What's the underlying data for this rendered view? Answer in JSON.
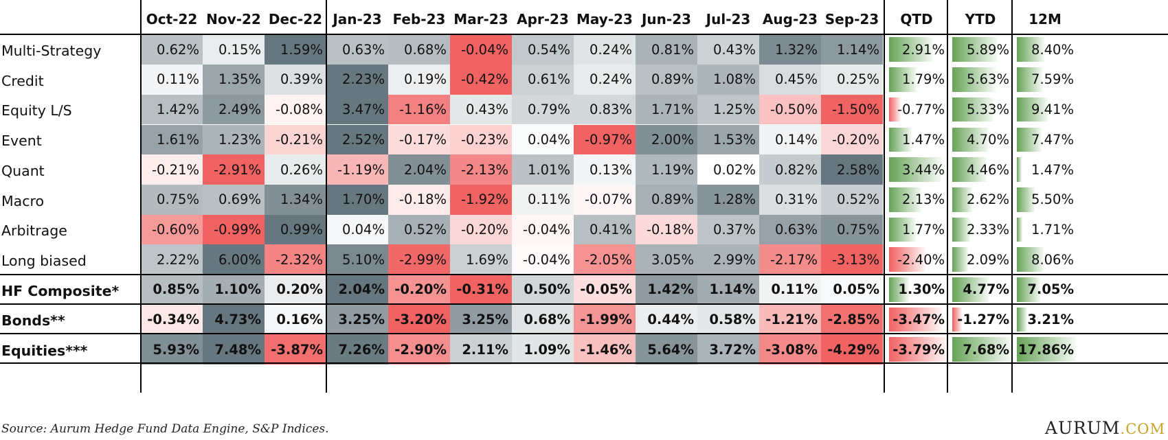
{
  "chart_data": {
    "type": "table",
    "months": [
      "Oct-22",
      "Nov-22",
      "Dec-22",
      "Jan-23",
      "Feb-23",
      "Mar-23",
      "Apr-23",
      "May-23",
      "Jun-23",
      "Jul-23",
      "Aug-23",
      "Sep-23"
    ],
    "summary_headers": [
      "QTD",
      "YTD",
      "12M"
    ],
    "rows": [
      {
        "label": "Multi-Strategy",
        "bold": false,
        "monthly": [
          "0.62%",
          "0.15%",
          "1.59%",
          "0.63%",
          "0.68%",
          "-0.04%",
          "0.54%",
          "0.24%",
          "0.81%",
          "0.43%",
          "1.32%",
          "1.14%"
        ],
        "summary": [
          "2.91%",
          "5.89%",
          "8.40%"
        ]
      },
      {
        "label": "Credit",
        "bold": false,
        "monthly": [
          "0.11%",
          "1.35%",
          "0.39%",
          "2.23%",
          "0.19%",
          "-0.42%",
          "0.61%",
          "0.24%",
          "0.89%",
          "1.08%",
          "0.45%",
          "0.25%"
        ],
        "summary": [
          "1.79%",
          "5.63%",
          "7.59%"
        ]
      },
      {
        "label": "Equity L/S",
        "bold": false,
        "monthly": [
          "1.42%",
          "2.49%",
          "-0.08%",
          "3.47%",
          "-1.16%",
          "0.43%",
          "0.79%",
          "0.83%",
          "1.71%",
          "1.25%",
          "-0.50%",
          "-1.50%"
        ],
        "summary": [
          "-0.77%",
          "5.33%",
          "9.41%"
        ]
      },
      {
        "label": "Event",
        "bold": false,
        "monthly": [
          "1.61%",
          "1.23%",
          "-0.21%",
          "2.52%",
          "-0.17%",
          "-0.23%",
          "0.04%",
          "-0.97%",
          "2.00%",
          "1.53%",
          "0.14%",
          "-0.20%"
        ],
        "summary": [
          "1.47%",
          "4.70%",
          "7.47%"
        ]
      },
      {
        "label": "Quant",
        "bold": false,
        "monthly": [
          "-0.21%",
          "-2.91%",
          "0.26%",
          "-1.19%",
          "2.04%",
          "-2.13%",
          "1.01%",
          "0.13%",
          "1.19%",
          "0.02%",
          "0.82%",
          "2.58%"
        ],
        "summary": [
          "3.44%",
          "4.46%",
          "1.47%"
        ]
      },
      {
        "label": "Macro",
        "bold": false,
        "monthly": [
          "0.75%",
          "0.69%",
          "1.34%",
          "1.70%",
          "-0.18%",
          "-1.92%",
          "0.11%",
          "-0.07%",
          "0.89%",
          "1.28%",
          "0.31%",
          "0.52%"
        ],
        "summary": [
          "2.13%",
          "2.62%",
          "5.50%"
        ]
      },
      {
        "label": "Arbitrage",
        "bold": false,
        "monthly": [
          "-0.60%",
          "-0.99%",
          "0.99%",
          "0.04%",
          "0.52%",
          "-0.20%",
          "-0.04%",
          "0.41%",
          "-0.18%",
          "0.37%",
          "0.63%",
          "0.75%"
        ],
        "summary": [
          "1.77%",
          "2.33%",
          "1.71%"
        ]
      },
      {
        "label": "Long biased",
        "bold": false,
        "monthly": [
          "2.22%",
          "6.00%",
          "-2.32%",
          "5.10%",
          "-2.99%",
          "1.69%",
          "-0.04%",
          "-2.05%",
          "3.05%",
          "2.99%",
          "-2.17%",
          "-3.13%"
        ],
        "summary": [
          "-2.40%",
          "2.09%",
          "8.06%"
        ]
      },
      {
        "label": "HF Composite*",
        "bold": true,
        "monthly": [
          "0.85%",
          "1.10%",
          "0.20%",
          "2.04%",
          "-0.20%",
          "-0.31%",
          "0.50%",
          "-0.05%",
          "1.42%",
          "1.14%",
          "0.11%",
          "0.05%"
        ],
        "summary": [
          "1.30%",
          "4.77%",
          "7.05%"
        ]
      },
      {
        "label": "Bonds**",
        "bold": true,
        "monthly": [
          "-0.34%",
          "4.73%",
          "0.16%",
          "3.25%",
          "-3.20%",
          "3.25%",
          "0.68%",
          "-1.99%",
          "0.44%",
          "0.58%",
          "-1.21%",
          "-2.85%"
        ],
        "summary": [
          "-3.47%",
          "-1.27%",
          "3.21%"
        ]
      },
      {
        "label": "Equities***",
        "bold": true,
        "monthly": [
          "5.93%",
          "7.48%",
          "-3.87%",
          "7.26%",
          "-2.90%",
          "2.11%",
          "1.09%",
          "-1.46%",
          "5.64%",
          "3.72%",
          "-3.08%",
          "-4.29%"
        ],
        "summary": [
          "-3.79%",
          "7.68%",
          "17.86%"
        ]
      }
    ],
    "colors": {
      "positive": "#5e9e4e",
      "negative": "#f05a5a",
      "neutral": "#ffffff"
    }
  },
  "footer": {
    "source": "Source: Aurum Hedge Fund Data Engine, S&P Indices.",
    "logo_main": "AURUM",
    "logo_domain": ".COM"
  }
}
